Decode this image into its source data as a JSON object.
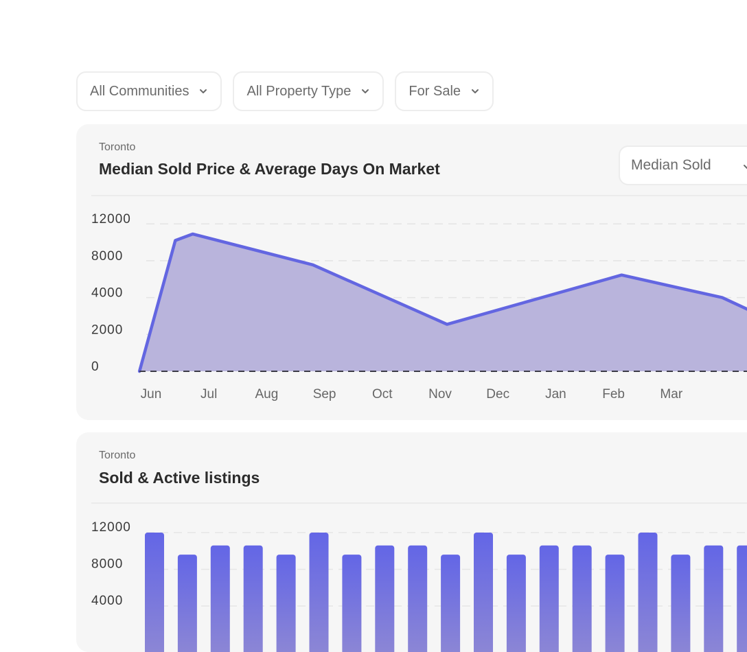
{
  "filters": {
    "community": {
      "label": "All Communities",
      "icon": "chevron-down-icon"
    },
    "property_type": {
      "label": "All Property Type",
      "icon": "chevron-down-icon"
    },
    "listing_status": {
      "label": "For Sale",
      "icon": "chevron-down-icon"
    }
  },
  "cards": {
    "price_dom": {
      "location": "Toronto",
      "title": "Median Sold Price & Average Days On Market",
      "metric_select": {
        "label": "Median Sold",
        "icon": "chevron-down-icon"
      }
    },
    "listings": {
      "location": "Toronto",
      "title": "Sold & Active listings"
    }
  },
  "colors": {
    "accent": "#6366e1",
    "area_fill": "#b9b4dc",
    "bar_top": "#6366e6",
    "bar_bottom": "#8e88d4",
    "card_bg": "#f6f6f6"
  },
  "chart_data": [
    {
      "type": "area",
      "title": "Median Sold Price & Average Days On Market",
      "xlabel": "",
      "ylabel": "",
      "y_ticks": [
        0,
        2000,
        4000,
        8000,
        12000
      ],
      "ylim": [
        0,
        12000
      ],
      "x_ticks": [
        "Jun",
        "Jul",
        "Aug",
        "Sep",
        "Oct",
        "Nov",
        "Dec",
        "Jan",
        "Feb",
        "Mar"
      ],
      "grid": true,
      "series": [
        {
          "name": "Median Sold",
          "points": [
            {
              "x": -0.2,
              "y": 0
            },
            {
              "x": 0.42,
              "y": 10200
            },
            {
              "x": 0.72,
              "y": 10900
            },
            {
              "x": 2.8,
              "y": 7550
            },
            {
              "x": 5.12,
              "y": 2550
            },
            {
              "x": 8.14,
              "y": 6450
            },
            {
              "x": 9.88,
              "y": 4000
            },
            {
              "x": 10.34,
              "y": 3330
            }
          ]
        }
      ]
    },
    {
      "type": "bar",
      "title": "Sold & Active listings",
      "y_ticks": [
        4000,
        8000,
        12000
      ],
      "ylim": [
        0,
        12000
      ],
      "grid": true,
      "values": [
        12000,
        9600,
        10600,
        10600,
        9600,
        12000,
        9600,
        10600,
        10600,
        9600,
        12000,
        9600,
        10600,
        10600,
        9600,
        12000,
        9600,
        10600,
        10600
      ]
    }
  ]
}
